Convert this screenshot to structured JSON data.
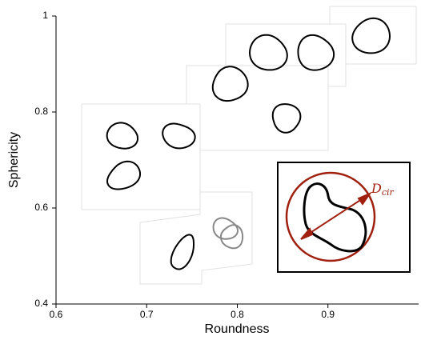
{
  "chart_data": {
    "type": "scatter",
    "xlabel": "Roundness",
    "ylabel": "Sphericity",
    "x": [
      0.673,
      0.735,
      0.675,
      0.792,
      0.854,
      0.834,
      0.886,
      0.948,
      0.74,
      0.79
    ],
    "values": [
      0.75,
      0.75,
      0.667,
      0.858,
      0.788,
      0.923,
      0.923,
      0.958,
      0.507,
      0.55
    ],
    "colors": [
      "#000000",
      "#000000",
      "#000000",
      "#000000",
      "#000000",
      "#000000",
      "#000000",
      "#000000",
      "#000000",
      "#888888"
    ],
    "xlim": [
      0.6,
      1.0
    ],
    "ylim": [
      0.4,
      1.0
    ],
    "xticks": [
      0.6,
      0.7,
      0.8,
      0.9
    ],
    "yticks": [
      0.4,
      0.6,
      0.8,
      1
    ],
    "inset_label": {
      "text": "D",
      "subscript": "cir",
      "color": "#a0200f"
    }
  }
}
